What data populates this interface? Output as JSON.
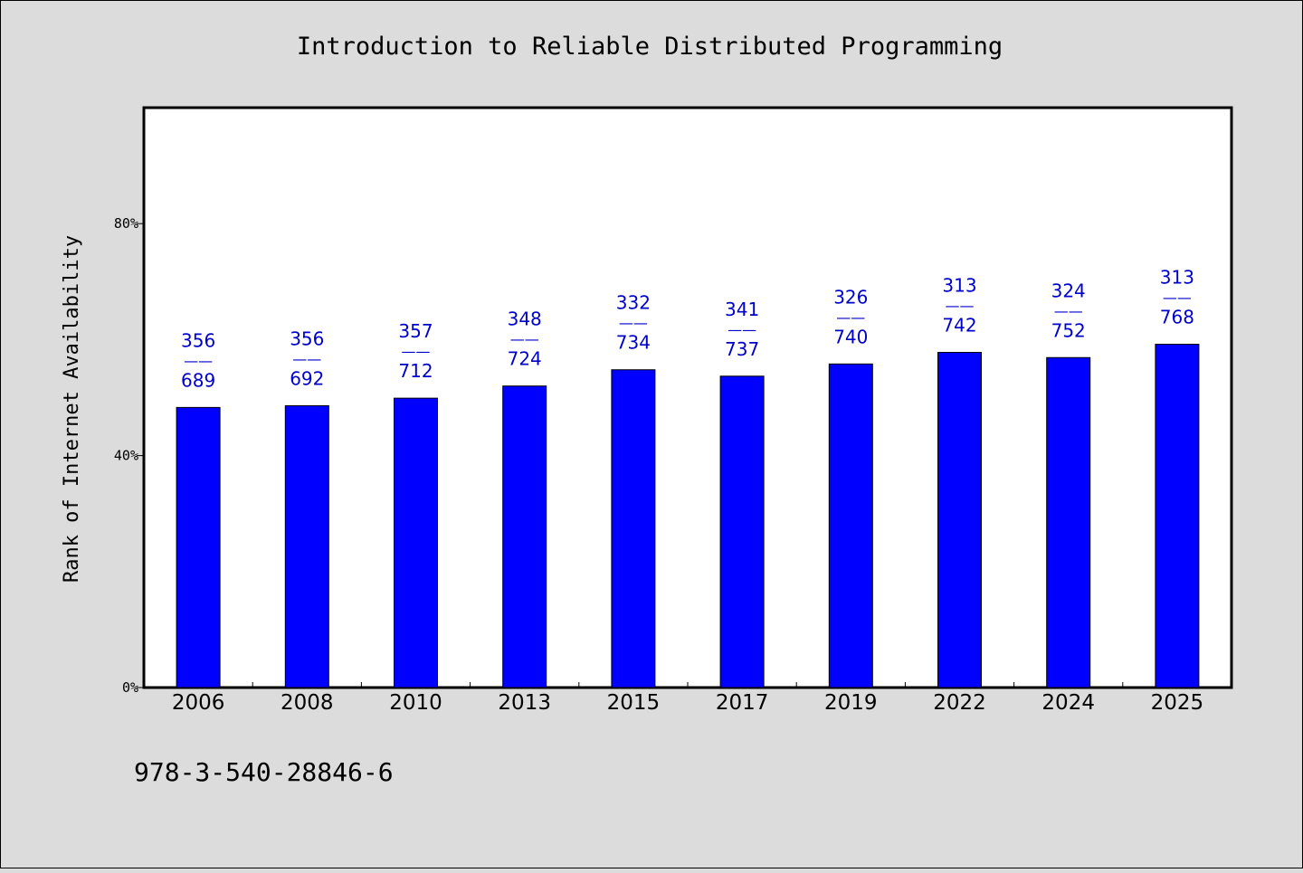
{
  "chart_data": {
    "type": "bar",
    "title": "Introduction to Reliable Distributed Programming",
    "ylabel": "Rank of Internet Availability",
    "xlabel": "",
    "footer_text": "978-3-540-28846-6",
    "categories": [
      "2006",
      "2008",
      "2010",
      "2013",
      "2015",
      "2017",
      "2019",
      "2022",
      "2024",
      "2025"
    ],
    "values": [
      48.3,
      48.6,
      49.9,
      52.0,
      54.8,
      53.7,
      55.8,
      57.8,
      56.9,
      59.2
    ],
    "label_top": [
      "356",
      "356",
      "357",
      "348",
      "332",
      "341",
      "326",
      "313",
      "324",
      "313"
    ],
    "label_sep": "——",
    "label_bottom": [
      "689",
      "692",
      "712",
      "724",
      "734",
      "737",
      "740",
      "742",
      "752",
      "768"
    ],
    "ylim": [
      0,
      100
    ],
    "yticks": [
      0,
      40,
      80
    ],
    "ytick_labels": [
      "0%",
      "40%",
      "80%"
    ],
    "grid": false,
    "legend": "none",
    "colors": {
      "background": "#dcdcdc",
      "plot_background": "#ffffff",
      "bar": "#0000ff",
      "bar_label": "#0000cc",
      "text": "#000000"
    }
  }
}
